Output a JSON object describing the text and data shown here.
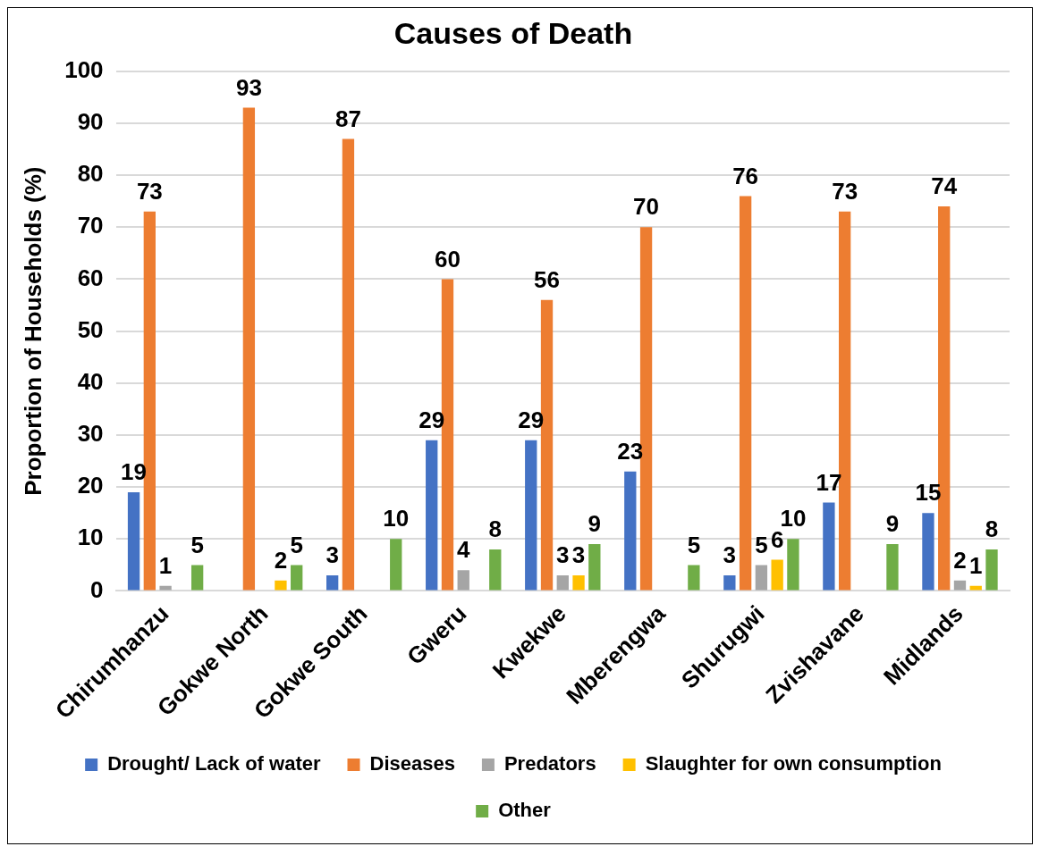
{
  "chart_data": {
    "type": "bar",
    "title": "Causes of Death",
    "ylabel": "Proportion of Households (%)",
    "categories": [
      "Chirumhanzu",
      "Gokwe North",
      "Gokwe South",
      "Gweru",
      "Kwekwe",
      "Mberengwa",
      "Shurugwi",
      "Zvishavane",
      "Midlands"
    ],
    "series": [
      {
        "name": "Drought/ Lack of water",
        "color": "#4472c4",
        "values": [
          19,
          null,
          3,
          29,
          29,
          23,
          3,
          17,
          15
        ]
      },
      {
        "name": "Diseases",
        "color": "#ed7d31",
        "values": [
          73,
          93,
          87,
          60,
          56,
          70,
          76,
          73,
          74
        ]
      },
      {
        "name": "Predators",
        "color": "#a5a5a5",
        "values": [
          1,
          null,
          null,
          4,
          3,
          null,
          5,
          null,
          2
        ]
      },
      {
        "name": "Slaughter for own consumption",
        "color": "#ffc000",
        "values": [
          null,
          2,
          null,
          null,
          3,
          null,
          6,
          null,
          1
        ]
      },
      {
        "name": "Other",
        "color": "#70ad47",
        "values": [
          5,
          5,
          10,
          8,
          9,
          5,
          10,
          9,
          8
        ]
      }
    ],
    "ylim": [
      0,
      100
    ],
    "yticks": [
      0,
      10,
      20,
      30,
      40,
      50,
      60,
      70,
      80,
      90,
      100
    ],
    "grid": "y",
    "legend": "bottom",
    "data_labels": true
  }
}
